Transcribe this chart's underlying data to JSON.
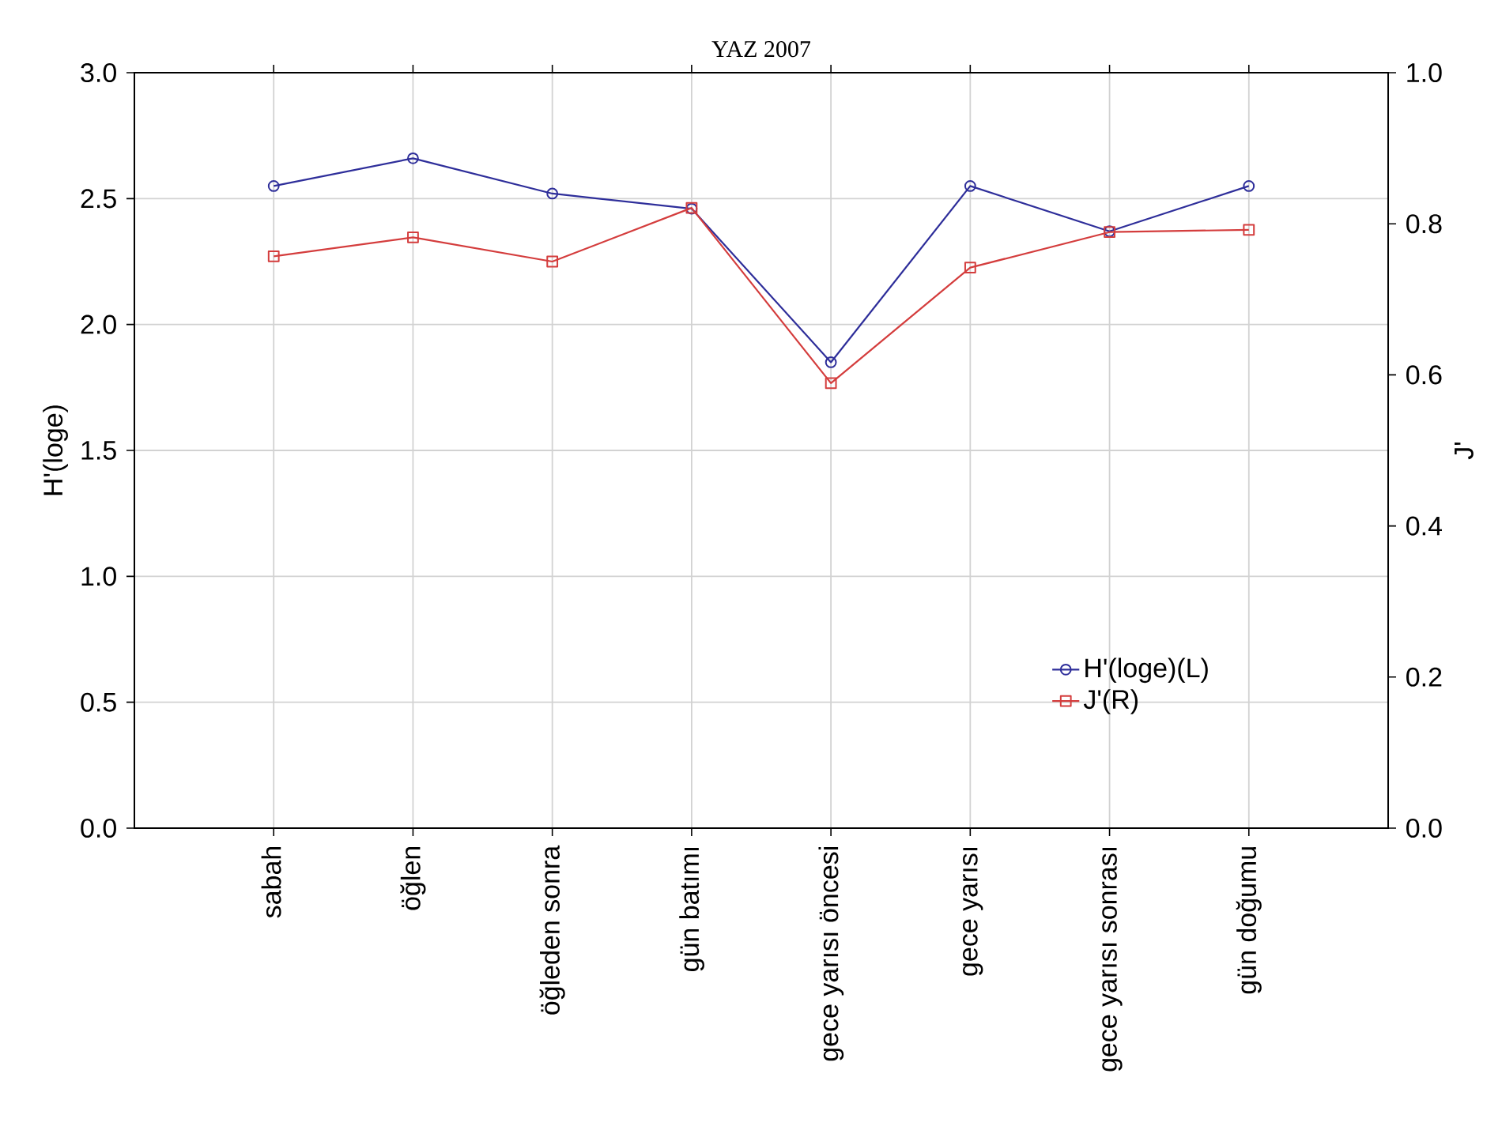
{
  "chart_data": {
    "type": "line",
    "title": "YAZ 2007",
    "ylabel": "H'(loge)",
    "y2label": "J'",
    "categories": [
      "sabah",
      "öğlen",
      "öğleden sonra",
      "gün batımı",
      "gece yarısı öncesi",
      "gece yarısı",
      "gece yarısı sonrası",
      "gün doğumu"
    ],
    "series": [
      {
        "name": "H'(loge)(L)",
        "color": "#2e2e9a",
        "marker": "circle",
        "values": [
          2.55,
          2.66,
          2.52,
          2.46,
          1.85,
          2.55,
          2.37,
          2.55
        ]
      },
      {
        "name": "J'(R)",
        "color": "#d43d3d",
        "marker": "square",
        "axis": "y2",
        "values": [
          0.757,
          0.782,
          0.75,
          0.821,
          0.589,
          0.742,
          0.789,
          0.792
        ]
      }
    ],
    "ylim": [
      0,
      3
    ],
    "yticks": [
      {
        "value": 0,
        "label": "0.0"
      },
      0.5,
      {
        "value": 1,
        "label": "1.0"
      },
      1.5,
      {
        "value": 2,
        "label": "2.0"
      },
      2.5,
      {
        "value": 3,
        "label": "3.0"
      }
    ],
    "y2lim": [
      0,
      1
    ],
    "y2ticks": [
      {
        "value": 0,
        "label": "0.0"
      },
      0.2,
      0.4,
      0.6,
      0.8,
      {
        "value": 1,
        "label": "1.0"
      }
    ],
    "grid": true,
    "legend": "bottom right",
    "line_style": "solid"
  }
}
